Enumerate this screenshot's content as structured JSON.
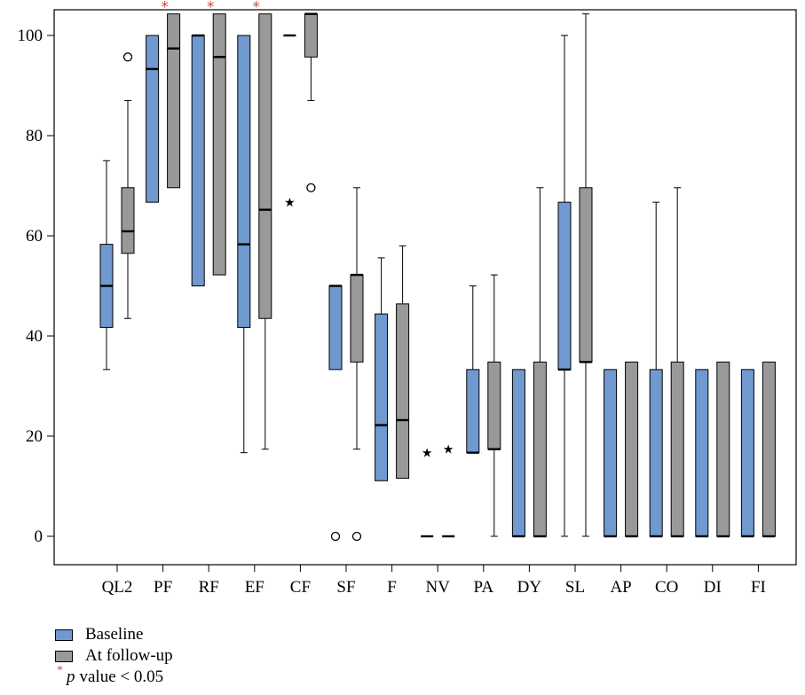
{
  "chart_data": {
    "type": "box",
    "ylim": [
      -5,
      105
    ],
    "yticks": [
      0,
      20,
      40,
      60,
      80,
      100
    ],
    "categories": [
      "QL2",
      "PF",
      "RF",
      "EF",
      "CF",
      "SF",
      "F",
      "NV",
      "PA",
      "DY",
      "SL",
      "AP",
      "CO",
      "DI",
      "FI"
    ],
    "significant": [
      false,
      true,
      true,
      true,
      false,
      false,
      false,
      false,
      false,
      false,
      false,
      false,
      false,
      false,
      false
    ],
    "colors": {
      "baseline": "#6f99cf",
      "follow_up": "#999999",
      "star": "#e0443a"
    },
    "series": [
      {
        "name": "Baseline",
        "boxes": [
          {
            "q1": 41.7,
            "median": 50.0,
            "q3": 58.3,
            "min": 33.3,
            "max": 75.0,
            "outliers": [],
            "extremes": []
          },
          {
            "q1": 66.7,
            "median": 93.3,
            "q3": 100.0,
            "min": 66.7,
            "max": 100.0,
            "outliers": [],
            "extremes": []
          },
          {
            "q1": 50.0,
            "median": 100.0,
            "q3": 100.0,
            "min": 50.0,
            "max": 100.0,
            "outliers": [],
            "extremes": []
          },
          {
            "q1": 41.7,
            "median": 58.3,
            "q3": 100.0,
            "min": 16.7,
            "max": 100.0,
            "outliers": [],
            "extremes": []
          },
          {
            "q1": 100.0,
            "median": 100.0,
            "q3": 100.0,
            "min": 100.0,
            "max": 100.0,
            "outliers": [],
            "extremes": [
              66.7
            ]
          },
          {
            "q1": 33.3,
            "median": 50.0,
            "q3": 50.0,
            "min": 33.3,
            "max": 50.0,
            "outliers": [
              0
            ],
            "extremes": []
          },
          {
            "q1": 11.1,
            "median": 22.2,
            "q3": 44.4,
            "min": 11.1,
            "max": 55.6,
            "outliers": [],
            "extremes": []
          },
          {
            "q1": 0,
            "median": 0,
            "q3": 0,
            "min": 0,
            "max": 0,
            "outliers": [],
            "extremes": [
              16.7
            ]
          },
          {
            "q1": 16.7,
            "median": 16.7,
            "q3": 33.3,
            "min": 16.7,
            "max": 50.0,
            "outliers": [],
            "extremes": []
          },
          {
            "q1": 0,
            "median": 0,
            "q3": 33.3,
            "min": 0,
            "max": 33.3,
            "outliers": [],
            "extremes": []
          },
          {
            "q1": 33.3,
            "median": 33.3,
            "q3": 66.7,
            "min": 0,
            "max": 100.0,
            "outliers": [],
            "extremes": []
          },
          {
            "q1": 0,
            "median": 0,
            "q3": 33.3,
            "min": 0,
            "max": 33.3,
            "outliers": [],
            "extremes": []
          },
          {
            "q1": 0,
            "median": 0,
            "q3": 33.3,
            "min": 0,
            "max": 66.7,
            "outliers": [],
            "extremes": []
          },
          {
            "q1": 0,
            "median": 0,
            "q3": 33.3,
            "min": 0,
            "max": 33.3,
            "outliers": [],
            "extremes": []
          },
          {
            "q1": 0,
            "median": 0,
            "q3": 33.3,
            "min": 0,
            "max": 33.3,
            "outliers": [],
            "extremes": []
          }
        ]
      },
      {
        "name": "At follow-up",
        "boxes": [
          {
            "q1": 56.5,
            "median": 60.9,
            "q3": 69.6,
            "min": 43.5,
            "max": 87.0,
            "outliers": [
              95.7
            ],
            "extremes": []
          },
          {
            "q1": 69.6,
            "median": 97.4,
            "q3": 104.3,
            "min": 69.6,
            "max": 104.3,
            "outliers": [],
            "extremes": []
          },
          {
            "q1": 52.2,
            "median": 95.7,
            "q3": 104.3,
            "min": 52.2,
            "max": 104.3,
            "outliers": [],
            "extremes": []
          },
          {
            "q1": 43.5,
            "median": 65.2,
            "q3": 104.3,
            "min": 17.4,
            "max": 104.3,
            "outliers": [],
            "extremes": []
          },
          {
            "q1": 95.7,
            "median": 104.3,
            "q3": 104.3,
            "min": 87.0,
            "max": 104.3,
            "outliers": [
              69.6
            ],
            "extremes": []
          },
          {
            "q1": 34.8,
            "median": 52.2,
            "q3": 52.2,
            "min": 17.4,
            "max": 69.6,
            "outliers": [
              0
            ],
            "extremes": []
          },
          {
            "q1": 11.6,
            "median": 23.2,
            "q3": 46.4,
            "min": 11.6,
            "max": 58.0,
            "outliers": [],
            "extremes": []
          },
          {
            "q1": 0,
            "median": 0,
            "q3": 0,
            "min": 0,
            "max": 0,
            "outliers": [],
            "extremes": [
              17.4
            ]
          },
          {
            "q1": 17.4,
            "median": 17.4,
            "q3": 34.8,
            "min": 0,
            "max": 52.2,
            "outliers": [],
            "extremes": []
          },
          {
            "q1": 0,
            "median": 0,
            "q3": 34.8,
            "min": 0,
            "max": 69.6,
            "outliers": [],
            "extremes": []
          },
          {
            "q1": 34.8,
            "median": 34.8,
            "q3": 69.6,
            "min": 0,
            "max": 104.3,
            "outliers": [],
            "extremes": []
          },
          {
            "q1": 0,
            "median": 0,
            "q3": 34.8,
            "min": 0,
            "max": 34.8,
            "outliers": [],
            "extremes": []
          },
          {
            "q1": 0,
            "median": 0,
            "q3": 34.8,
            "min": 0,
            "max": 69.6,
            "outliers": [],
            "extremes": []
          },
          {
            "q1": 0,
            "median": 0,
            "q3": 34.8,
            "min": 0,
            "max": 34.8,
            "outliers": [],
            "extremes": []
          },
          {
            "q1": 0,
            "median": 0,
            "q3": 34.8,
            "min": 0,
            "max": 34.8,
            "outliers": [],
            "extremes": []
          }
        ]
      }
    ]
  },
  "legend": {
    "baseline_label": "Baseline",
    "follow_up_label": "At follow-up",
    "significance_marker": "*",
    "significance_p": "p",
    "significance_label": "value < 0.05"
  }
}
